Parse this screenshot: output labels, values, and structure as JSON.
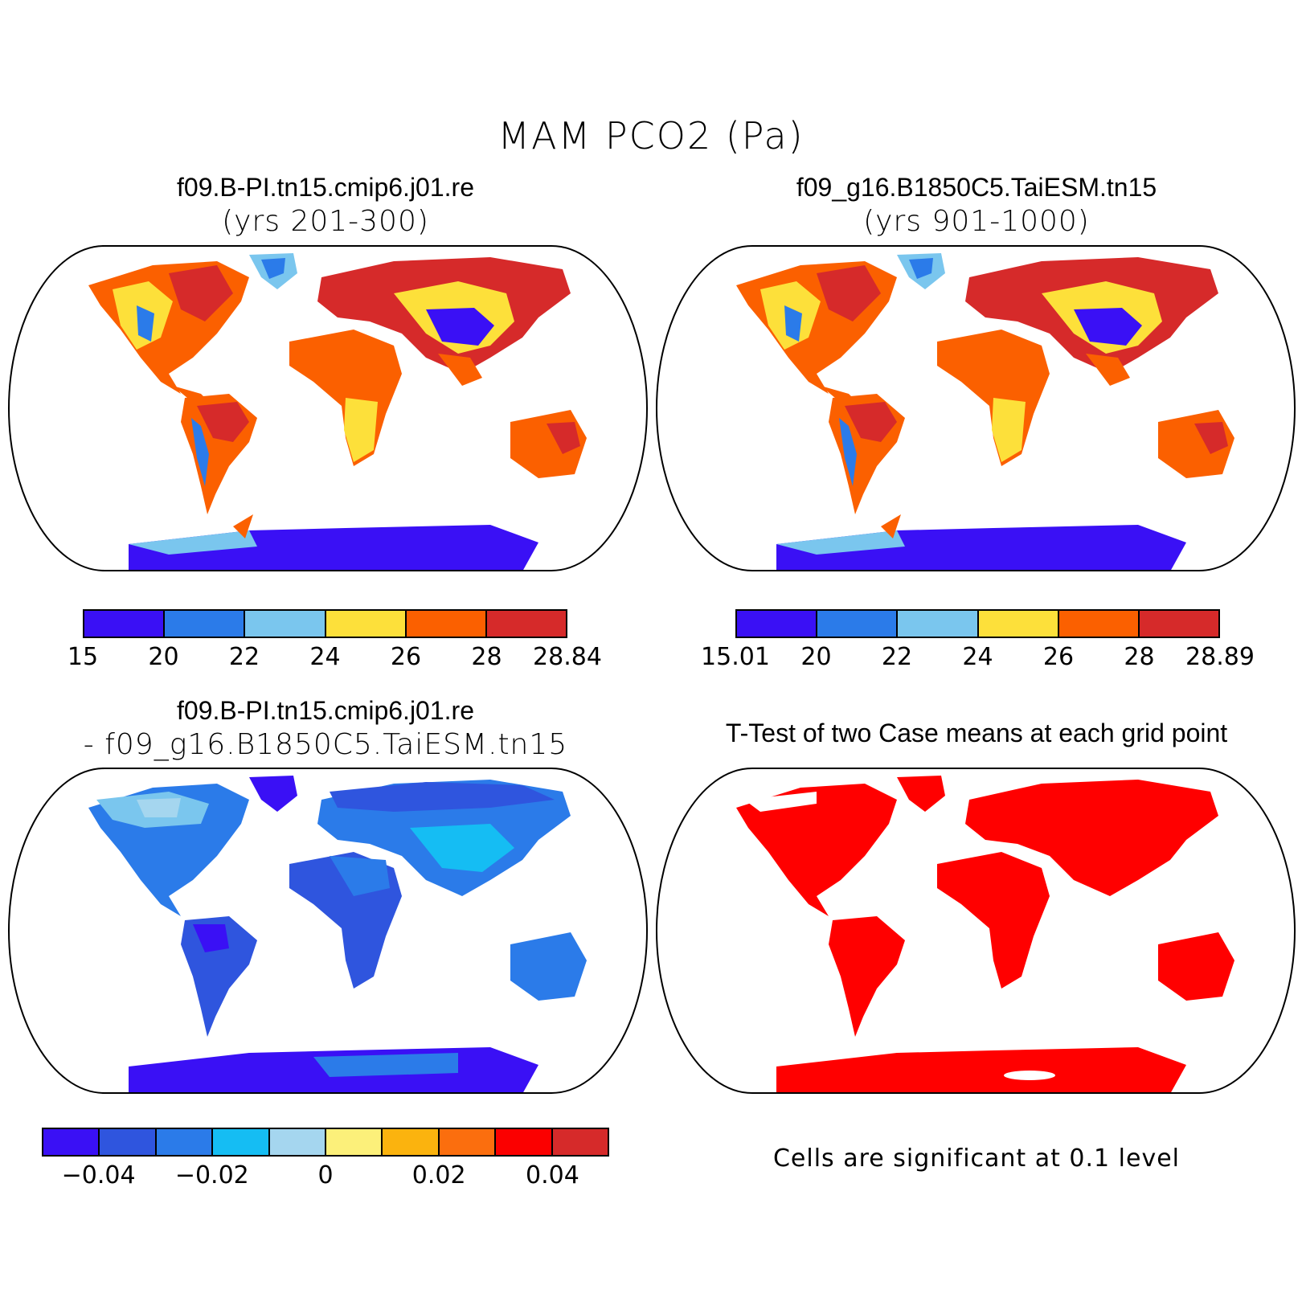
{
  "title": "MAM PCO2 (Pa)",
  "colors": {
    "ocean": "#ffffff",
    "outline": "#000000",
    "sig_fill": "#ff0000"
  },
  "panels": [
    {
      "id": "case1",
      "title": "f09.B-PI.tn15.cmip6.j01.re",
      "subtitle": "(yrs 201-300)",
      "colorbar": {
        "colors": [
          "#3a10f5",
          "#2b7be9",
          "#7ac6ee",
          "#fde03a",
          "#fb6000",
          "#d62a2a"
        ],
        "ticks": [
          "15",
          "20",
          "22",
          "24",
          "26",
          "28",
          "28.84"
        ]
      }
    },
    {
      "id": "case2",
      "title": "f09_g16.B1850C5.TaiESM.tn15",
      "subtitle": "(yrs 901-1000)",
      "colorbar": {
        "colors": [
          "#3a10f5",
          "#2b7be9",
          "#7ac6ee",
          "#fde03a",
          "#fb6000",
          "#d62a2a"
        ],
        "ticks": [
          "15.01",
          "20",
          "22",
          "24",
          "26",
          "28",
          "28.89"
        ]
      }
    },
    {
      "id": "difference",
      "title": "f09.B-PI.tn15.cmip6.j01.re",
      "subtitle": "- f09_g16.B1850C5.TaiESM.tn15",
      "colorbar": {
        "colors": [
          "#3a10f5",
          "#2f55de",
          "#2b7be9",
          "#15bdf3",
          "#a5d6ef",
          "#fcf07a",
          "#fbb30e",
          "#fb6e0e",
          "#fb0000",
          "#d62a2a"
        ],
        "ticks": [
          "-0.04",
          "-0.02",
          "0",
          "0.02",
          "0.04"
        ]
      }
    },
    {
      "id": "ttest",
      "title": "T-Test of two Case means at each grid point",
      "note": "Cells are significant at 0.1 level"
    }
  ]
}
